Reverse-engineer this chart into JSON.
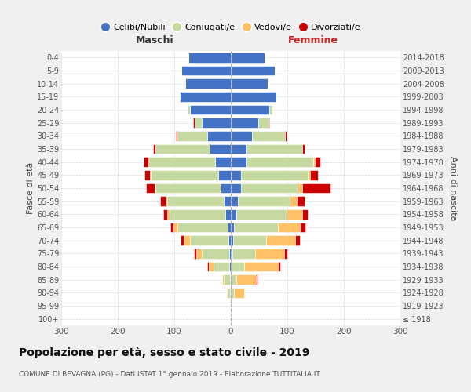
{
  "age_groups": [
    "100+",
    "95-99",
    "90-94",
    "85-89",
    "80-84",
    "75-79",
    "70-74",
    "65-69",
    "60-64",
    "55-59",
    "50-54",
    "45-49",
    "40-44",
    "35-39",
    "30-34",
    "25-29",
    "20-24",
    "15-19",
    "10-14",
    "5-9",
    "0-4"
  ],
  "birth_years": [
    "≤ 1918",
    "1919-1923",
    "1924-1928",
    "1929-1933",
    "1934-1938",
    "1939-1943",
    "1944-1948",
    "1949-1953",
    "1954-1958",
    "1959-1963",
    "1964-1968",
    "1969-1973",
    "1974-1978",
    "1979-1983",
    "1984-1988",
    "1989-1993",
    "1994-1998",
    "1999-2003",
    "2004-2008",
    "2009-2013",
    "2014-2018"
  ],
  "male_celibi": [
    0,
    0,
    2,
    2,
    3,
    3,
    4,
    6,
    10,
    12,
    18,
    22,
    28,
    38,
    42,
    52,
    72,
    90,
    80,
    88,
    75
  ],
  "male_coniugati": [
    0,
    1,
    5,
    10,
    28,
    48,
    68,
    88,
    98,
    100,
    115,
    120,
    118,
    95,
    52,
    12,
    4,
    1,
    0,
    0,
    0
  ],
  "male_vedovi": [
    0,
    0,
    2,
    3,
    8,
    10,
    12,
    8,
    4,
    3,
    2,
    1,
    0,
    0,
    0,
    0,
    0,
    0,
    0,
    0,
    0
  ],
  "male_divorziati": [
    0,
    0,
    0,
    0,
    2,
    4,
    5,
    5,
    8,
    10,
    15,
    10,
    8,
    5,
    3,
    2,
    0,
    0,
    0,
    0,
    0
  ],
  "female_nubili": [
    0,
    0,
    2,
    2,
    2,
    3,
    4,
    6,
    10,
    12,
    18,
    18,
    28,
    28,
    38,
    48,
    68,
    80,
    65,
    78,
    60
  ],
  "female_coniugate": [
    0,
    0,
    4,
    8,
    22,
    40,
    58,
    78,
    88,
    92,
    100,
    118,
    118,
    98,
    58,
    18,
    6,
    1,
    0,
    0,
    0
  ],
  "female_vedove": [
    0,
    2,
    18,
    35,
    60,
    52,
    52,
    38,
    28,
    12,
    8,
    4,
    2,
    0,
    0,
    0,
    0,
    0,
    0,
    0,
    0
  ],
  "female_divorziate": [
    0,
    0,
    0,
    2,
    3,
    5,
    8,
    10,
    10,
    14,
    50,
    14,
    10,
    5,
    2,
    2,
    0,
    0,
    0,
    0,
    0
  ],
  "colors": {
    "celibi_nubili": "#4472c4",
    "coniugati": "#c5d9a0",
    "vedovi": "#ffc165",
    "divorziati": "#cc0000"
  },
  "xlim": 300,
  "title": "Popolazione per età, sesso e stato civile - 2019",
  "subtitle": "COMUNE DI BEVAGNA (PG) - Dati ISTAT 1° gennaio 2019 - Elaborazione TUTTITALIA.IT",
  "ylabel_left": "Fasce di età",
  "ylabel_right": "Anni di nascita",
  "xlabel_male": "Maschi",
  "xlabel_female": "Femmine",
  "legend_labels": [
    "Celibi/Nubili",
    "Coniugati/e",
    "Vedovi/e",
    "Divorziati/e"
  ],
  "bg_color": "#f0f0f0",
  "plot_bg": "#ffffff",
  "grid_color": "#cccccc"
}
